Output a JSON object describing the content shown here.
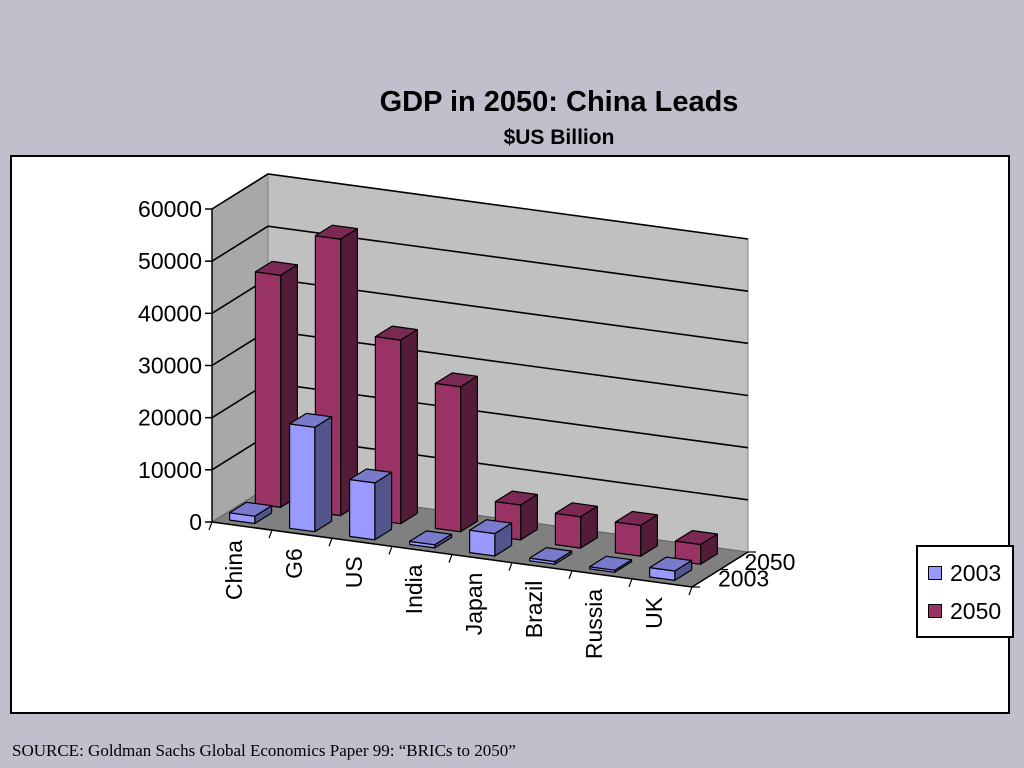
{
  "title": "GDP in 2050: China Leads",
  "subtitle": "$US Billion",
  "source": "SOURCE: Goldman Sachs Global Economics Paper 99: “BRICs to 2050”",
  "colors": {
    "s2003": "#9999ff",
    "s2050": "#993366"
  },
  "chart_data": {
    "type": "bar",
    "title": "GDP in 2050: China Leads",
    "subtitle": "$US Billion",
    "categories": [
      "China",
      "G6",
      "US",
      "India",
      "Japan",
      "Brazil",
      "Russia",
      "UK"
    ],
    "series": [
      {
        "name": "2003",
        "values": [
          1400,
          20000,
          10900,
          600,
          4300,
          500,
          400,
          1800
        ]
      },
      {
        "name": "2050",
        "values": [
          44500,
          53000,
          35200,
          27800,
          6700,
          6000,
          5900,
          3800
        ]
      }
    ],
    "depth_labels": [
      "2050",
      "2003"
    ],
    "yticks": [
      0,
      10000,
      20000,
      30000,
      40000,
      50000,
      60000
    ],
    "ylim": [
      0,
      60000
    ],
    "legend": {
      "position": "right",
      "entries": [
        "2003",
        "2050"
      ]
    },
    "grid": true
  }
}
